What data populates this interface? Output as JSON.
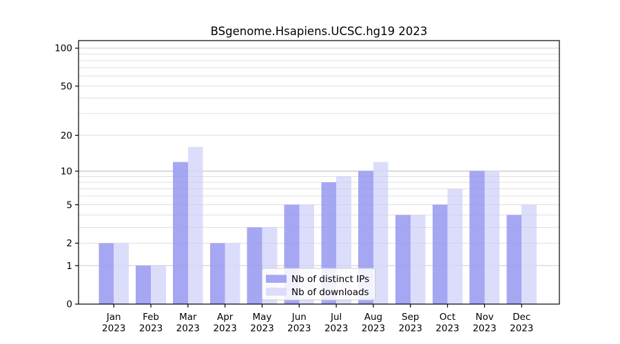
{
  "chart_data": {
    "type": "bar",
    "title": "BSgenome.Hsapiens.UCSC.hg19 2023",
    "categories": [
      "Jan",
      "Feb",
      "Mar",
      "Apr",
      "May",
      "Jun",
      "Jul",
      "Aug",
      "Sep",
      "Oct",
      "Nov",
      "Dec"
    ],
    "year_label": "2023",
    "series": [
      {
        "name": "Nb of distinct IPs",
        "color": "#a5a7f3",
        "values": [
          2,
          1,
          12,
          2,
          3,
          5,
          8,
          10,
          4,
          5,
          10,
          4
        ]
      },
      {
        "name": "Nb of downloads",
        "color": "#dcddfb",
        "values": [
          2,
          1,
          16,
          2,
          3,
          5,
          9,
          12,
          4,
          7,
          10,
          5
        ]
      }
    ],
    "yscale": "log1p",
    "ylim": [
      0,
      115
    ],
    "yticks": [
      100,
      50,
      20,
      10,
      5,
      2,
      1,
      0
    ],
    "grid": {
      "major_values": [
        1,
        10,
        100
      ],
      "minor_values": [
        2,
        3,
        4,
        5,
        6,
        7,
        8,
        9,
        20,
        30,
        40,
        50,
        60,
        70,
        80,
        90
      ],
      "major_color": "#d4d4d4",
      "minor_color": "#ebebeb"
    },
    "legend": {
      "position": "bottom-center",
      "entries": [
        "Nb of distinct IPs",
        "Nb of downloads"
      ],
      "border_color": "#cccccc",
      "background_color": "rgba(255,255,255,0.85)"
    },
    "axis": {
      "spine_color": "#000000",
      "tick_label_color": "#000000"
    }
  }
}
